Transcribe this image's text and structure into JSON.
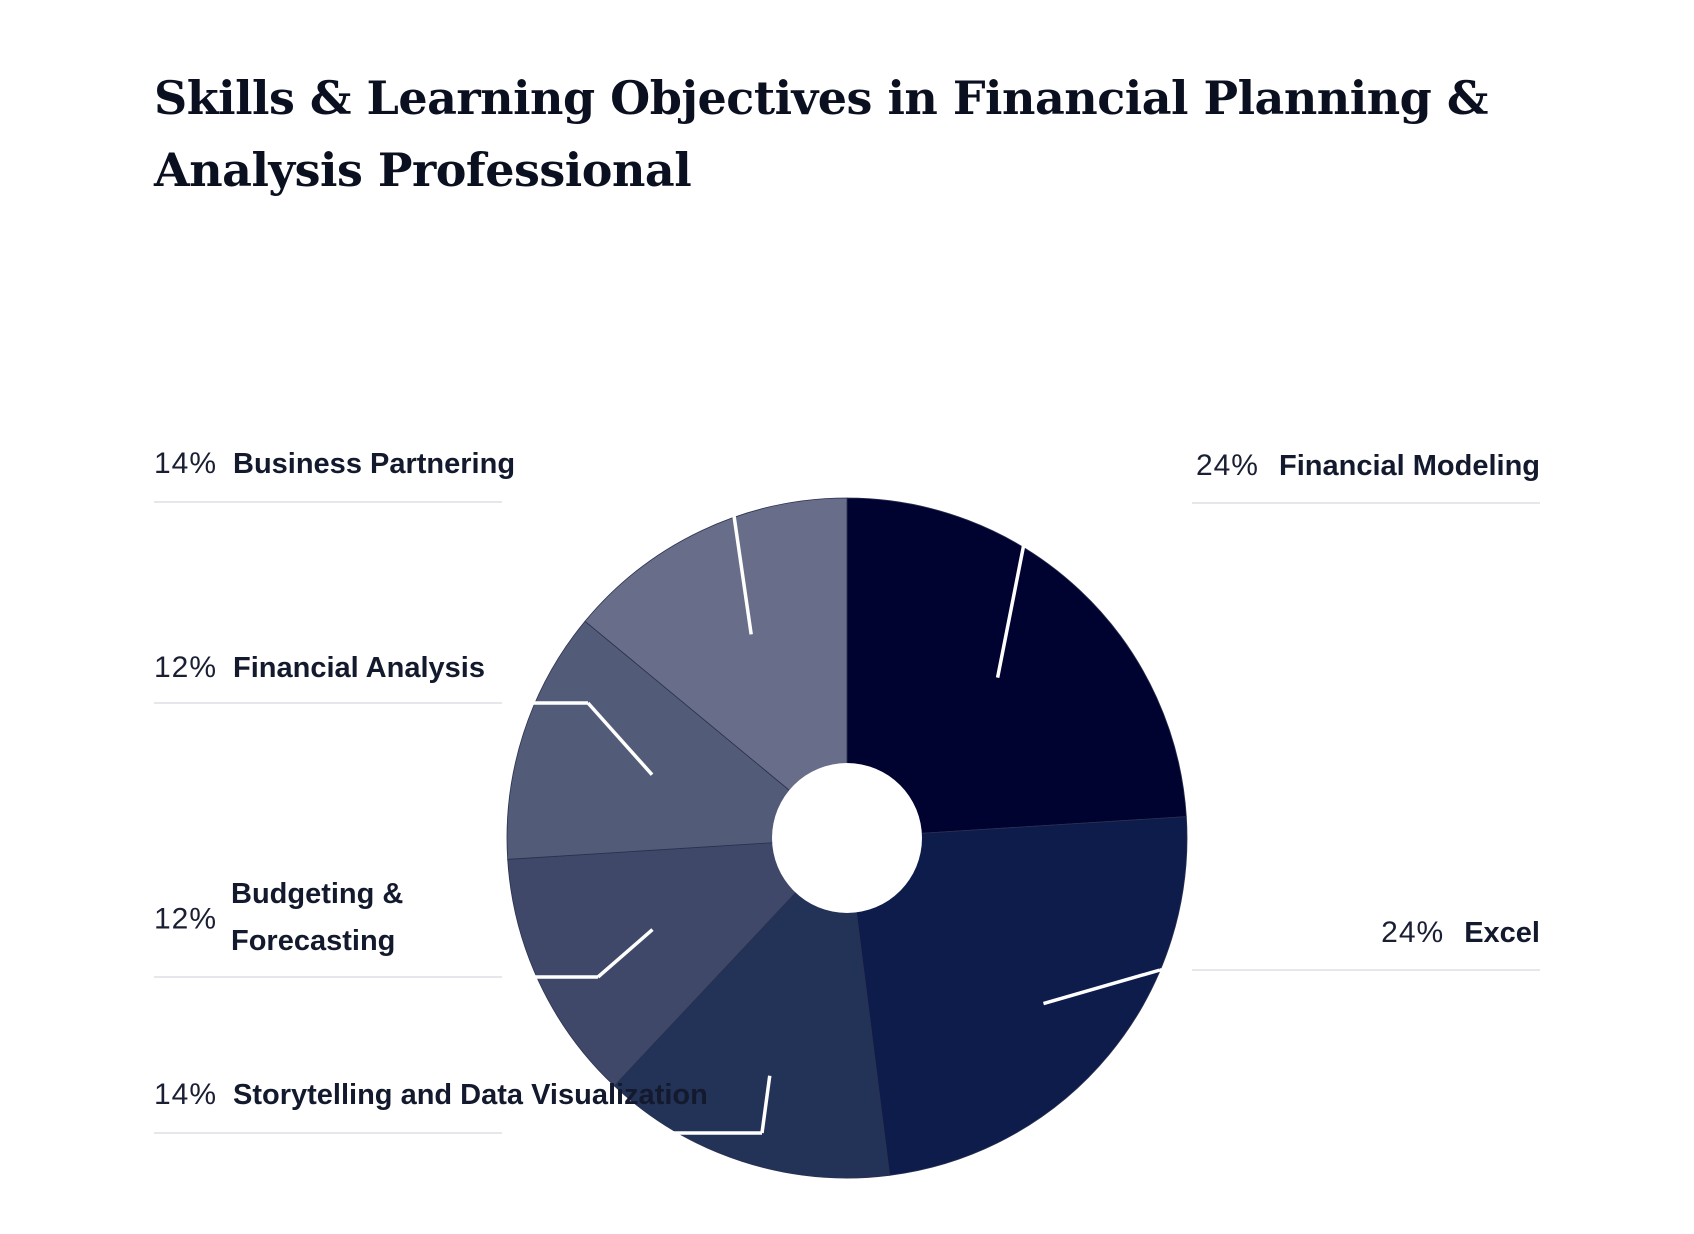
{
  "chart_data": {
    "type": "pie",
    "title": "Skills & Learning Objectives in Financial Planning & Analysis Professional",
    "categories": [
      "Financial Modeling",
      "Excel",
      "Storytelling and Data Visualization",
      "Budgeting & Forecasting",
      "Financial Analysis",
      "Business Partnering"
    ],
    "values": [
      24,
      24,
      14,
      12,
      12,
      14
    ],
    "labels": [
      {
        "pct": "24%",
        "name_lines": [
          "Financial Modeling"
        ],
        "side": "right"
      },
      {
        "pct": "24%",
        "name_lines": [
          "Excel"
        ],
        "side": "right"
      },
      {
        "pct": "14%",
        "name_lines": [
          "Storytelling and Data Visualization"
        ],
        "side": "left"
      },
      {
        "pct": "12%",
        "name_lines": [
          "Budgeting &",
          "Forecasting"
        ],
        "side": "left"
      },
      {
        "pct": "12%",
        "name_lines": [
          "Financial Analysis"
        ],
        "side": "left"
      },
      {
        "pct": "14%",
        "name_lines": [
          "Business Partnering"
        ],
        "side": "left"
      }
    ],
    "colors": [
      "#000230",
      "#0d1c4b",
      "#233257",
      "#3f4868",
      "#525c78",
      "#686d89"
    ],
    "donut_hole": true,
    "legend": "none"
  }
}
